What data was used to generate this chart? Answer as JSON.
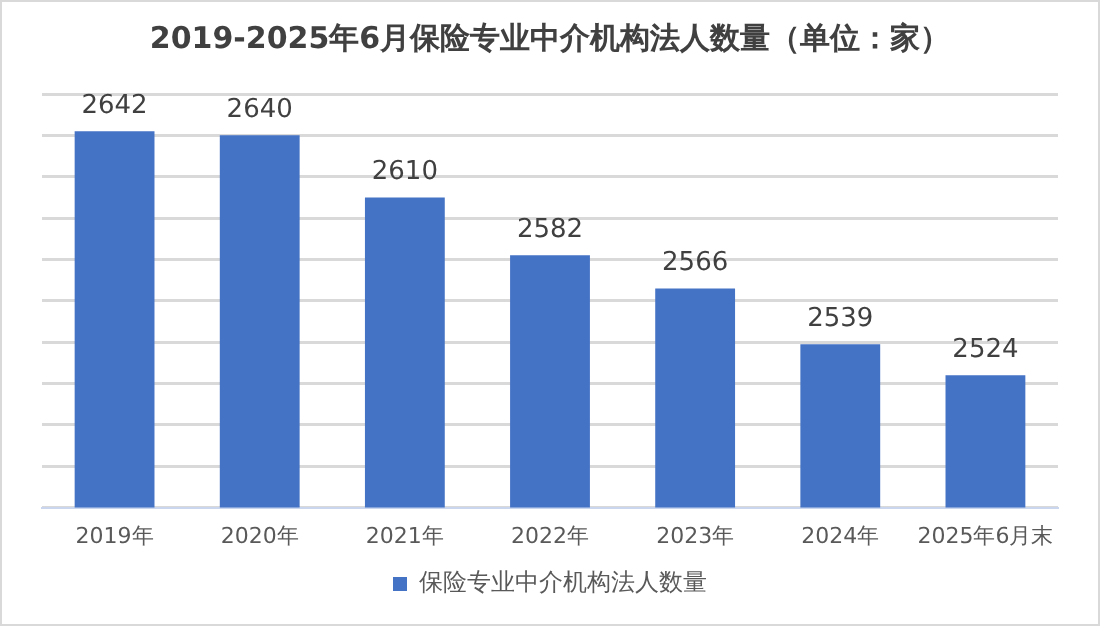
{
  "chart_data": {
    "type": "bar",
    "title": "2019-2025年6月保险专业中介机构法人数量（单位：家）",
    "categories": [
      "2019年",
      "2020年",
      "2021年",
      "2022年",
      "2023年",
      "2024年",
      "2025年6月末"
    ],
    "series": [
      {
        "name": "保险专业中介机构法人数量",
        "color": "#4472c4",
        "values": [
          2642,
          2640,
          2610,
          2582,
          2566,
          2539,
          2524
        ]
      }
    ],
    "ylim": [
      2460,
      2660
    ],
    "yticks": [
      {
        "value": 2460,
        "label": null
      },
      {
        "value": 2480,
        "label": null
      },
      {
        "value": 2500,
        "label": null
      },
      {
        "value": 2520,
        "label": null
      },
      {
        "value": 2540,
        "label": null
      },
      {
        "value": 2560,
        "label": null
      },
      {
        "value": 2580,
        "label": null
      },
      {
        "value": 2600,
        "label": null
      },
      {
        "value": 2620,
        "label": null
      },
      {
        "value": 2640,
        "label": null
      },
      {
        "value": 2660,
        "label": null
      }
    ],
    "tick_labels": "x",
    "grid": "y",
    "data_labels": true,
    "legend": "bottom"
  }
}
